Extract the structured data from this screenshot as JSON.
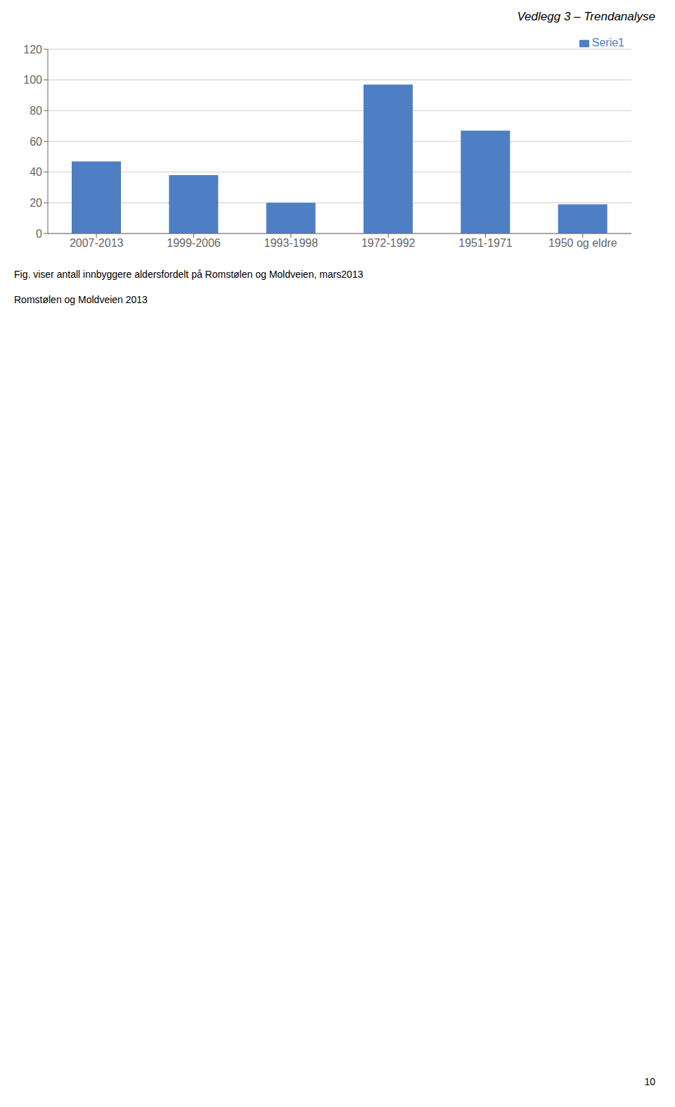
{
  "chart_data": {
    "type": "bar",
    "title": "Vedlegg 3 – Trendanalyse",
    "categories": [
      "2007-2013",
      "1999-2006",
      "1993-1998",
      "1972-1992",
      "1951-1971",
      "1950 og eldre"
    ],
    "series": [
      {
        "name": "Serie1",
        "color": "#4e7fc4",
        "values": [
          47,
          38,
          20,
          97,
          67,
          19
        ]
      }
    ],
    "ylim": [
      0,
      120
    ],
    "yticks": [
      0,
      20,
      40,
      60,
      80,
      100,
      120
    ],
    "grid": true,
    "legend": "upper right",
    "annotations": [
      "Fig. viser antall innbyggere aldersfordelt på Romstølen og Moldveien, mars2013",
      "Romstølen og Moldveien 2013",
      "10"
    ]
  }
}
